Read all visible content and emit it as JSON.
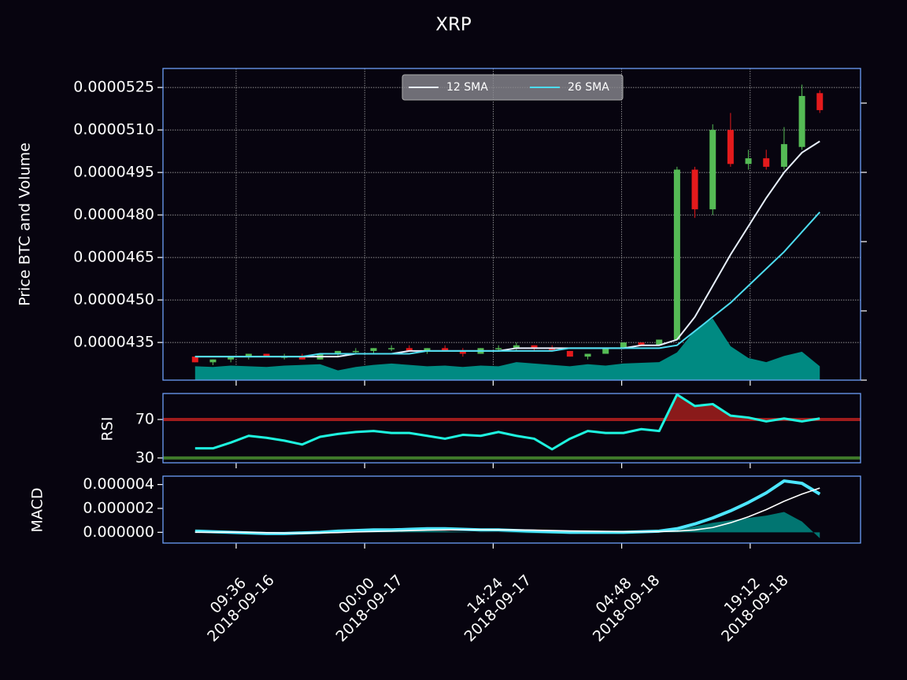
{
  "chart_data": [
    {
      "type": "candlestick",
      "title": "XRP",
      "ylabel": "Price BTC and Volume",
      "x": [
        "2018-09-16 05:00",
        "2018-09-16 07:00",
        "2018-09-16 09:00",
        "2018-09-16 11:00",
        "2018-09-16 13:00",
        "2018-09-16 15:00",
        "2018-09-16 17:00",
        "2018-09-16 19:00",
        "2018-09-16 21:00",
        "2018-09-16 23:00",
        "2018-09-17 01:00",
        "2018-09-17 03:00",
        "2018-09-17 05:00",
        "2018-09-17 07:00",
        "2018-09-17 09:00",
        "2018-09-17 11:00",
        "2018-09-17 13:00",
        "2018-09-17 15:00",
        "2018-09-17 17:00",
        "2018-09-17 19:00",
        "2018-09-17 21:00",
        "2018-09-17 23:00",
        "2018-09-18 01:00",
        "2018-09-18 03:00",
        "2018-09-18 05:00",
        "2018-09-18 07:00",
        "2018-09-18 09:00",
        "2018-09-18 11:00",
        "2018-09-18 13:00",
        "2018-09-18 15:00",
        "2018-09-18 17:00",
        "2018-09-18 19:00",
        "2018-09-18 21:00",
        "2018-09-18 23:00",
        "2018-09-19 01:00",
        "2018-09-19 03:00"
      ],
      "open": [
        4.3e-05,
        4.28e-05,
        4.29e-05,
        4.3e-05,
        4.31e-05,
        4.3e-05,
        4.3e-05,
        4.29e-05,
        4.31e-05,
        4.32e-05,
        4.32e-05,
        4.33e-05,
        4.33e-05,
        4.32e-05,
        4.33e-05,
        4.32e-05,
        4.31e-05,
        4.33e-05,
        4.33e-05,
        4.34e-05,
        4.33e-05,
        4.32e-05,
        4.3e-05,
        4.31e-05,
        4.33e-05,
        4.35e-05,
        4.34e-05,
        4.36e-05,
        4.96e-05,
        4.82e-05,
        5.1e-05,
        4.98e-05,
        5e-05,
        4.97e-05,
        5.04e-05,
        5.23e-05
      ],
      "high": [
        4.3e-05,
        4.29e-05,
        4.3e-05,
        4.31e-05,
        4.31e-05,
        4.31e-05,
        4.31e-05,
        4.31e-05,
        4.32e-05,
        4.33e-05,
        4.33e-05,
        4.34e-05,
        4.34e-05,
        4.33e-05,
        4.34e-05,
        4.33e-05,
        4.33e-05,
        4.34e-05,
        4.35e-05,
        4.34e-05,
        4.34e-05,
        4.32e-05,
        4.31e-05,
        4.33e-05,
        4.35e-05,
        4.35e-05,
        4.36e-05,
        4.97e-05,
        4.97e-05,
        5.12e-05,
        5.16e-05,
        5.03e-05,
        5.03e-05,
        5.11e-05,
        5.26e-05,
        5.24e-05
      ],
      "low": [
        4.28e-05,
        4.27e-05,
        4.28e-05,
        4.29e-05,
        4.3e-05,
        4.29e-05,
        4.29e-05,
        4.29e-05,
        4.3e-05,
        4.31e-05,
        4.31e-05,
        4.32e-05,
        4.32e-05,
        4.31e-05,
        4.32e-05,
        4.3e-05,
        4.31e-05,
        4.32e-05,
        4.32e-05,
        4.32e-05,
        4.32e-05,
        4.3e-05,
        4.29e-05,
        4.31e-05,
        4.33e-05,
        4.34e-05,
        4.34e-05,
        4.36e-05,
        4.79e-05,
        4.8e-05,
        4.97e-05,
        4.96e-05,
        4.96e-05,
        4.96e-05,
        5.03e-05,
        5.16e-05
      ],
      "close": [
        4.28e-05,
        4.29e-05,
        4.3e-05,
        4.31e-05,
        4.3e-05,
        4.3e-05,
        4.29e-05,
        4.31e-05,
        4.32e-05,
        4.32e-05,
        4.33e-05,
        4.33e-05,
        4.32e-05,
        4.33e-05,
        4.32e-05,
        4.31e-05,
        4.33e-05,
        4.33e-05,
        4.34e-05,
        4.33e-05,
        4.32e-05,
        4.3e-05,
        4.31e-05,
        4.33e-05,
        4.35e-05,
        4.34e-05,
        4.36e-05,
        4.96e-05,
        4.82e-05,
        5.1e-05,
        4.98e-05,
        5e-05,
        4.97e-05,
        5.05e-05,
        5.22e-05,
        5.17e-05
      ],
      "up_color": "#55bb55",
      "down_color": "#e41a1c",
      "volume": {
        "color": "#008a82",
        "axis": "y2",
        "values": [
          20,
          19,
          21,
          20,
          19,
          21,
          22,
          23,
          14,
          19,
          22,
          24,
          22,
          20,
          21,
          19,
          21,
          20,
          26,
          24,
          22,
          20,
          23,
          21,
          24,
          25,
          26,
          40,
          72,
          89,
          49,
          32,
          26,
          35,
          41,
          20
        ]
      },
      "series": [
        {
          "name": "12 SMA",
          "color": "#e8f0ff",
          "values": [
            4.3e-05,
            4.3e-05,
            4.3e-05,
            4.3e-05,
            4.3e-05,
            4.3e-05,
            4.3e-05,
            4.3e-05,
            4.3e-05,
            4.31e-05,
            4.31e-05,
            4.31e-05,
            4.32e-05,
            4.32e-05,
            4.32e-05,
            4.32e-05,
            4.32e-05,
            4.32e-05,
            4.33e-05,
            4.33e-05,
            4.33e-05,
            4.33e-05,
            4.33e-05,
            4.33e-05,
            4.33e-05,
            4.34e-05,
            4.34e-05,
            4.36e-05,
            4.44e-05,
            4.55e-05,
            4.66e-05,
            4.76e-05,
            4.86e-05,
            4.95e-05,
            5.02e-05,
            5.06e-05
          ]
        },
        {
          "name": "26 SMA",
          "color": "#4ddcf0",
          "values": [
            4.3e-05,
            4.3e-05,
            4.3e-05,
            4.3e-05,
            4.3e-05,
            4.3e-05,
            4.3e-05,
            4.31e-05,
            4.31e-05,
            4.31e-05,
            4.31e-05,
            4.31e-05,
            4.31e-05,
            4.32e-05,
            4.32e-05,
            4.32e-05,
            4.32e-05,
            4.32e-05,
            4.32e-05,
            4.32e-05,
            4.32e-05,
            4.33e-05,
            4.33e-05,
            4.33e-05,
            4.33e-05,
            4.33e-05,
            4.33e-05,
            4.34e-05,
            4.39e-05,
            4.44e-05,
            4.49e-05,
            4.55e-05,
            4.61e-05,
            4.67e-05,
            4.74e-05,
            4.81e-05
          ]
        }
      ],
      "xlim": [
        "2018-09-16 01:24",
        "2018-09-19 07:34"
      ],
      "ylim": [
        4.217e-05,
        5.317e-05
      ],
      "yticks": [
        {
          "value": 4.35e-05,
          "label": "0.0000435"
        },
        {
          "value": 4.5e-05,
          "label": "0.0000450"
        },
        {
          "value": 4.65e-05,
          "label": "0.0000465"
        },
        {
          "value": 4.8e-05,
          "label": "0.0000480"
        },
        {
          "value": 4.95e-05,
          "label": "0.0000495"
        },
        {
          "value": 5.1e-05,
          "label": "0.0000510"
        },
        {
          "value": 5.25e-05,
          "label": "0.0000525"
        }
      ],
      "y2lim": [
        0,
        450
      ],
      "y2ticks": [
        0,
        100,
        200,
        300,
        400
      ],
      "grid": true,
      "legend": "upper center"
    },
    {
      "type": "line",
      "ylabel": "RSI",
      "x": [
        "2018-09-16 05:00",
        "2018-09-16 07:00",
        "2018-09-16 09:00",
        "2018-09-16 11:00",
        "2018-09-16 13:00",
        "2018-09-16 15:00",
        "2018-09-16 17:00",
        "2018-09-16 19:00",
        "2018-09-16 21:00",
        "2018-09-16 23:00",
        "2018-09-17 01:00",
        "2018-09-17 03:00",
        "2018-09-17 05:00",
        "2018-09-17 07:00",
        "2018-09-17 09:00",
        "2018-09-17 11:00",
        "2018-09-17 13:00",
        "2018-09-17 15:00",
        "2018-09-17 17:00",
        "2018-09-17 19:00",
        "2018-09-17 21:00",
        "2018-09-17 23:00",
        "2018-09-18 01:00",
        "2018-09-18 03:00",
        "2018-09-18 05:00",
        "2018-09-18 07:00",
        "2018-09-18 09:00",
        "2018-09-18 11:00",
        "2018-09-18 13:00",
        "2018-09-18 15:00",
        "2018-09-18 17:00",
        "2018-09-18 19:00",
        "2018-09-18 21:00",
        "2018-09-18 23:00",
        "2018-09-19 01:00",
        "2018-09-19 03:00"
      ],
      "series": [
        {
          "color": "#1ef7e0",
          "values": [
            40,
            40,
            46,
            53,
            51,
            48,
            44,
            52,
            55,
            57,
            58,
            56,
            56,
            53,
            50,
            54,
            53,
            57,
            53,
            50,
            39,
            50,
            58,
            56,
            56,
            60,
            58,
            96,
            84,
            86,
            74,
            72,
            68,
            71,
            68,
            71
          ]
        }
      ],
      "hlines": [
        {
          "value": 70,
          "color": "#a01c1c"
        },
        {
          "value": 30,
          "color": "#3f7a2a"
        }
      ],
      "fill_color": "#8a1a1a",
      "xlim": [
        "2018-09-16 01:24",
        "2018-09-19 07:34"
      ],
      "ylim": [
        25,
        97
      ],
      "yticks": [
        30,
        70
      ]
    },
    {
      "type": "line",
      "ylabel": "MACD",
      "x": [
        "2018-09-16 05:00",
        "2018-09-16 07:00",
        "2018-09-16 09:00",
        "2018-09-16 11:00",
        "2018-09-16 13:00",
        "2018-09-16 15:00",
        "2018-09-16 17:00",
        "2018-09-16 19:00",
        "2018-09-16 21:00",
        "2018-09-16 23:00",
        "2018-09-17 01:00",
        "2018-09-17 03:00",
        "2018-09-17 05:00",
        "2018-09-17 07:00",
        "2018-09-17 09:00",
        "2018-09-17 11:00",
        "2018-09-17 13:00",
        "2018-09-17 15:00",
        "2018-09-17 17:00",
        "2018-09-17 19:00",
        "2018-09-17 21:00",
        "2018-09-17 23:00",
        "2018-09-18 01:00",
        "2018-09-18 03:00",
        "2018-09-18 05:00",
        "2018-09-18 07:00",
        "2018-09-18 09:00",
        "2018-09-18 11:00",
        "2018-09-18 13:00",
        "2018-09-18 15:00",
        "2018-09-18 17:00",
        "2018-09-18 19:00",
        "2018-09-18 21:00",
        "2018-09-18 23:00",
        "2018-09-19 01:00",
        "2018-09-19 03:00"
      ],
      "series": [
        {
          "color": "#4de6ff",
          "width": 4,
          "values": [
            1e-07,
            5e-08,
            0,
            -5e-08,
            -1e-07,
            -1e-07,
            -5e-08,
            0,
            1e-07,
            1.5e-07,
            2e-07,
            2e-07,
            2.5e-07,
            3e-07,
            3e-07,
            2.5e-07,
            2e-07,
            2e-07,
            1.5e-07,
            1e-07,
            5e-08,
            0,
            0,
            0,
            0,
            5e-08,
            1e-07,
            3e-07,
            7e-07,
            1.2e-06,
            1.8e-06,
            2.5e-06,
            3.3e-06,
            4.3e-06,
            4.1e-06,
            3.2e-06
          ]
        },
        {
          "color": "#ffffff",
          "width": 1.6,
          "values": [
            0,
            0,
            2e-08,
            0,
            -3e-08,
            -6e-08,
            -7e-08,
            -5e-08,
            -2e-08,
            3e-08,
            7e-08,
            1e-07,
            1.4e-07,
            1.8e-07,
            2e-07,
            2.2e-07,
            2.2e-07,
            2.1e-07,
            2e-07,
            1.8e-07,
            1.5e-07,
            1.2e-07,
            1e-07,
            8e-08,
            6e-08,
            5e-08,
            6e-08,
            1e-07,
            2e-07,
            4e-07,
            8e-07,
            1.3e-06,
            1.9e-06,
            2.6e-06,
            3.2e-06,
            3.7e-06
          ]
        }
      ],
      "histogram": {
        "color": "#008a82",
        "values": [
          1e-07,
          5e-08,
          -2e-08,
          -5e-08,
          -7e-08,
          -4e-08,
          2e-08,
          5e-08,
          1.2e-07,
          1.2e-07,
          1.3e-07,
          1e-07,
          1.1e-07,
          1.2e-07,
          1e-07,
          3e-08,
          -2e-08,
          -1e-08,
          -5e-08,
          -8e-08,
          -1e-07,
          -1.2e-07,
          -1e-07,
          -8e-08,
          -6e-08,
          0,
          4e-08,
          2e-07,
          5e-07,
          8e-07,
          1e-06,
          1.2e-06,
          1.4e-06,
          1.7e-06,
          9e-07,
          -5e-07
        ]
      },
      "xlim": [
        "2018-09-16 01:24",
        "2018-09-19 07:34"
      ],
      "ylim": [
        -9e-07,
        4.7e-06
      ],
      "yticks": [
        {
          "value": 0,
          "label": "0.000000"
        },
        {
          "value": 2e-06,
          "label": "0.000002"
        },
        {
          "value": 4e-06,
          "label": "0.000004"
        }
      ],
      "xticks": [
        {
          "value": "2018-09-16 09:36",
          "label": [
            "09:36",
            "2018-09-16"
          ]
        },
        {
          "value": "2018-09-17 00:00",
          "label": [
            "00:00",
            "2018-09-17"
          ]
        },
        {
          "value": "2018-09-17 14:24",
          "label": [
            "14:24",
            "2018-09-17"
          ]
        },
        {
          "value": "2018-09-18 04:48",
          "label": [
            "04:48",
            "2018-09-18"
          ]
        },
        {
          "value": "2018-09-18 19:12",
          "label": [
            "19:12",
            "2018-09-18"
          ]
        }
      ]
    }
  ]
}
